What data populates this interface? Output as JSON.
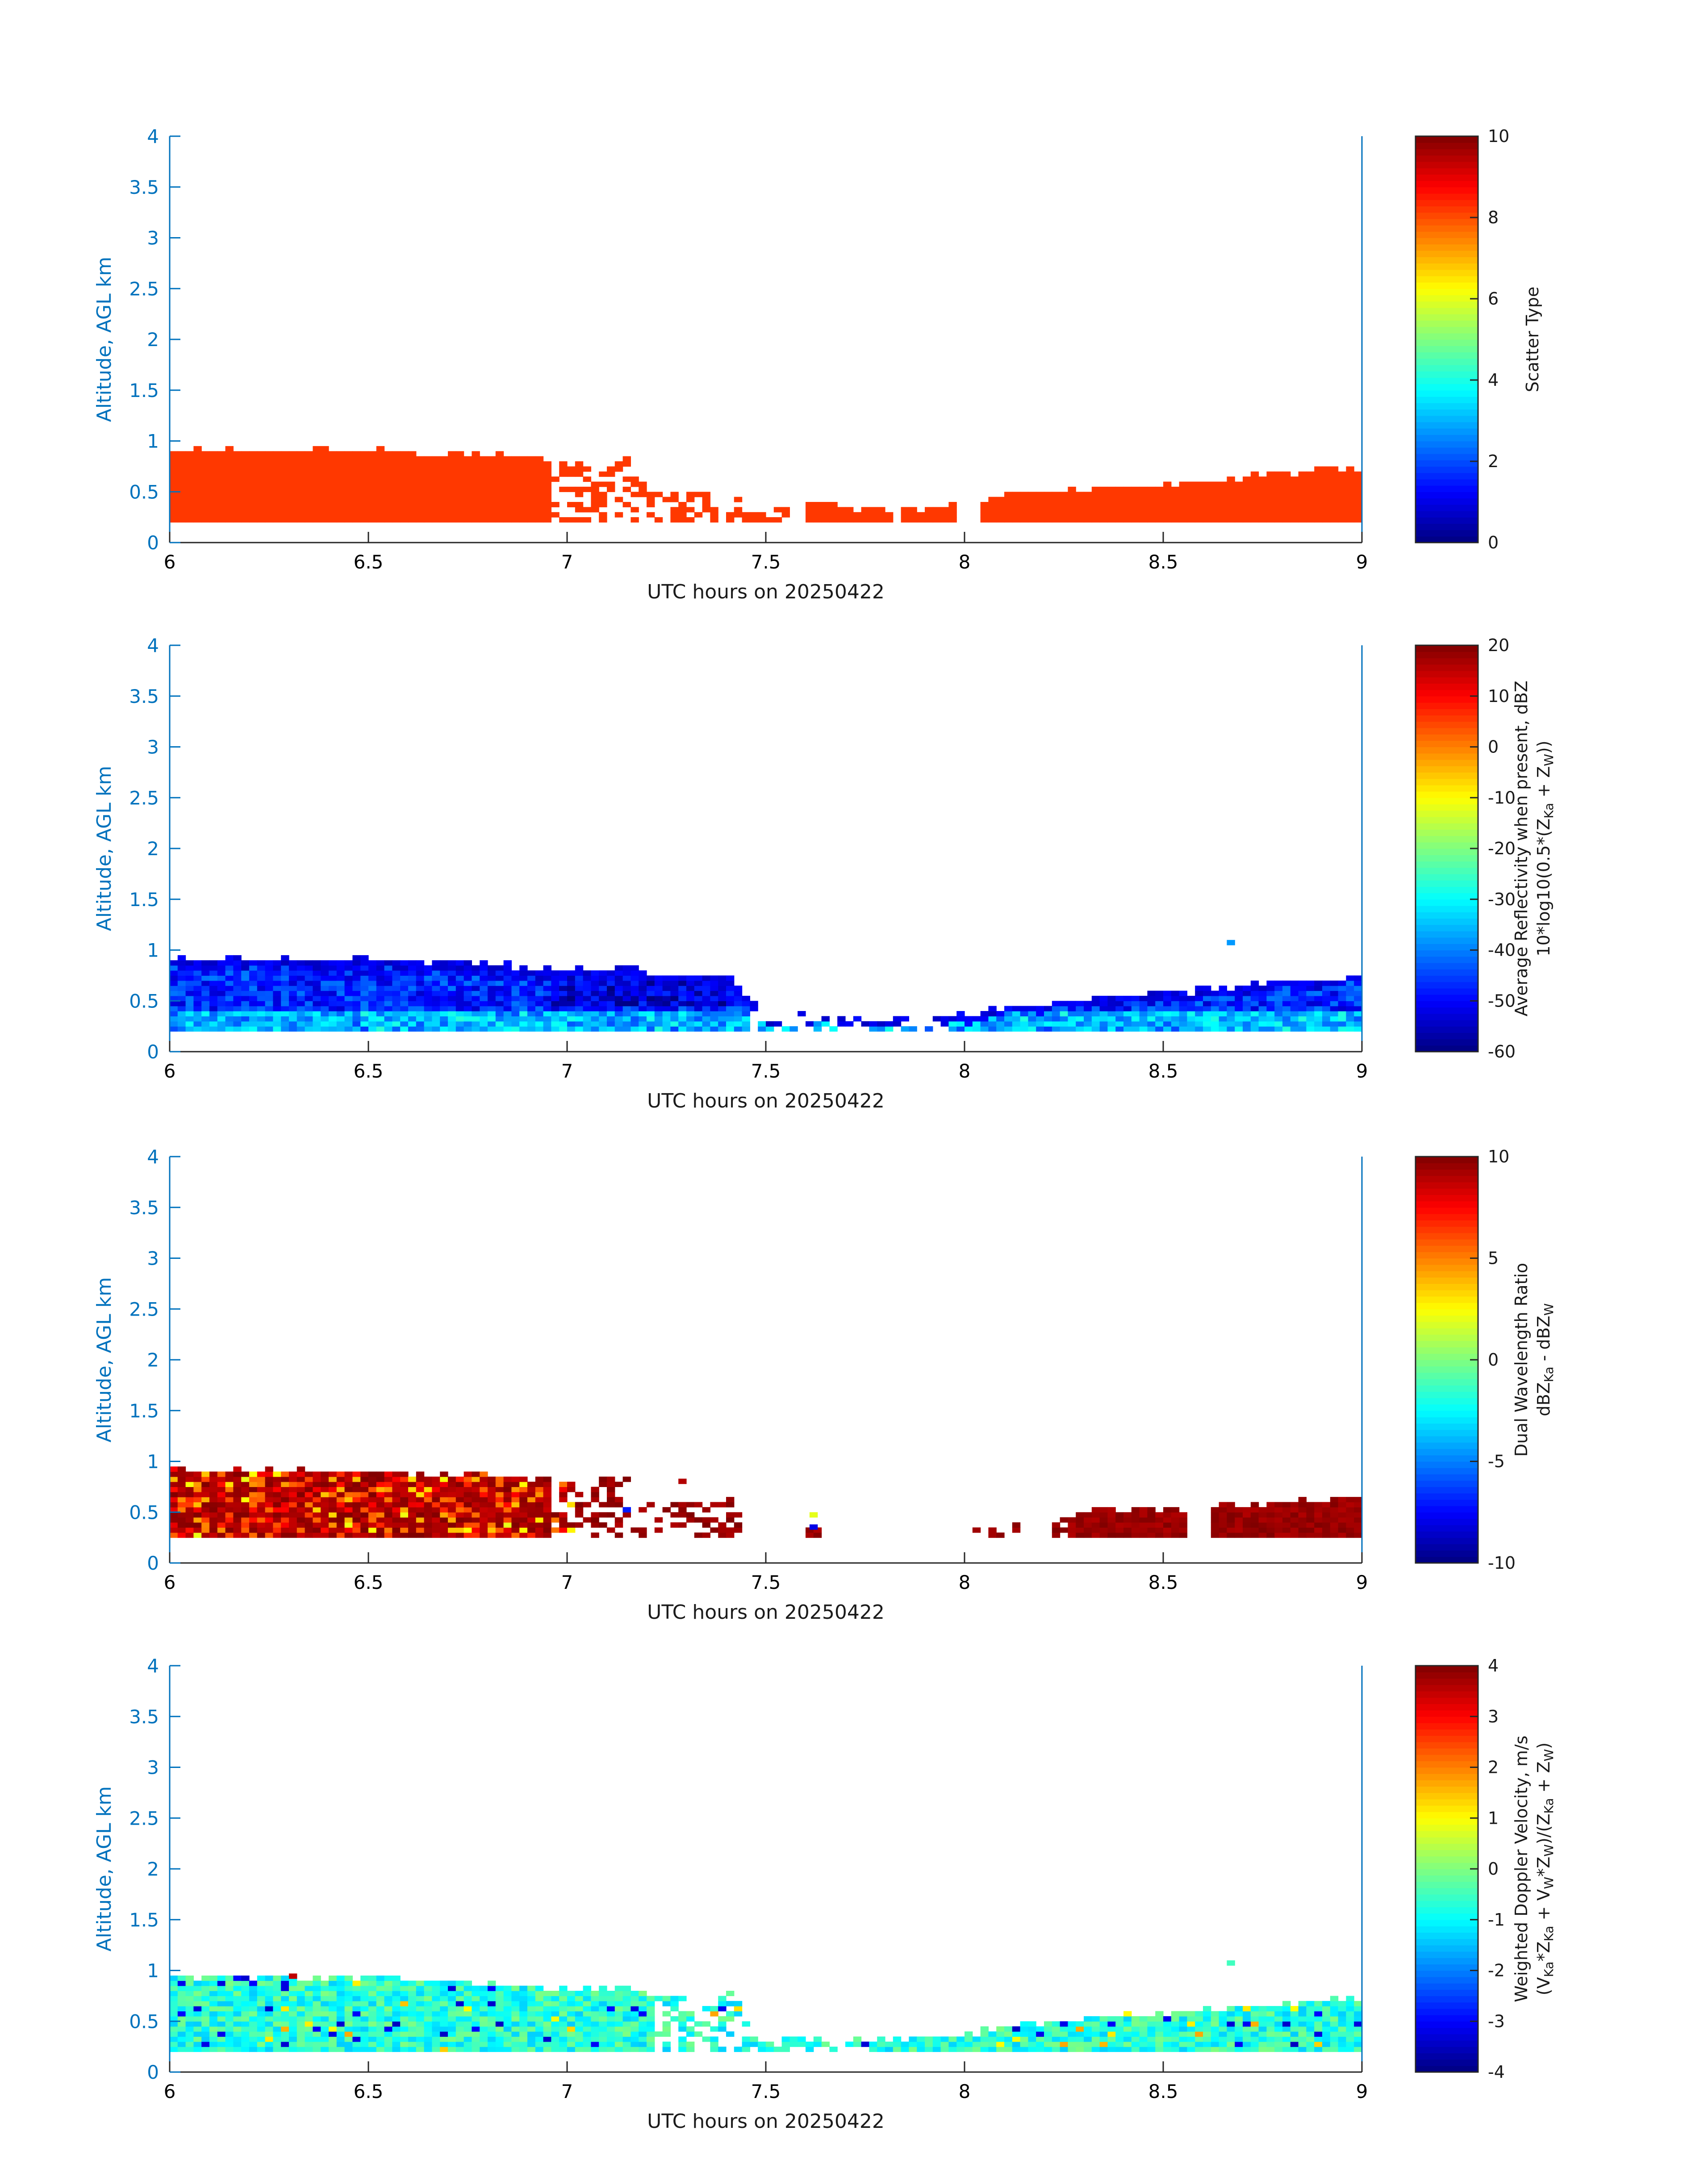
{
  "figure": {
    "background": "#ffffff"
  },
  "chart_data": [
    {
      "type": "heatmap",
      "panel": "scatter-type",
      "xlabel": "UTC hours on 20250422",
      "ylabel": "Altitude, AGL km",
      "xlim": [
        6,
        9
      ],
      "ylim": [
        0,
        4
      ],
      "xticks": [
        "6",
        "6.5",
        "7",
        "7.5",
        "8",
        "8.5",
        "9"
      ],
      "yticks": [
        "0",
        "0.5",
        "1",
        "1.5",
        "2",
        "2.5",
        "3",
        "3.5",
        "4"
      ],
      "colorbar": {
        "label_lines": [
          "Scatter Type"
        ],
        "ticks": [
          "0",
          "2",
          "4",
          "6",
          "8",
          "10"
        ],
        "range": [
          0,
          10
        ],
        "colormap": "jet"
      },
      "field": "constant",
      "constant_value": 8.2,
      "cloud_base_km": 0.2,
      "cloud_top_profile": {
        "x": [
          6.0,
          6.5,
          6.8,
          6.9,
          7.0,
          7.15,
          7.2,
          7.3,
          7.4,
          7.5,
          7.6,
          7.8,
          8.0,
          8.1,
          8.3,
          8.5,
          8.7,
          8.9,
          9.0
        ],
        "top_km": [
          0.88,
          0.88,
          0.84,
          0.8,
          0.78,
          0.8,
          0.48,
          0.45,
          0.42,
          0.3,
          0.35,
          0.3,
          0.35,
          0.45,
          0.5,
          0.55,
          0.62,
          0.7,
          0.72
        ]
      },
      "gaps_x": [
        [
          7.8,
          7.83
        ],
        [
          7.97,
          8.02
        ]
      ],
      "x_clear": [],
      "x_sparse": [
        [
          6.95,
          7.6
        ]
      ],
      "isolated": []
    },
    {
      "type": "heatmap",
      "panel": "reflectivity",
      "xlabel": "UTC hours on 20250422",
      "ylabel": "Altitude, AGL km",
      "xlim": [
        6,
        9
      ],
      "ylim": [
        0,
        4
      ],
      "xticks": [
        "6",
        "6.5",
        "7",
        "7.5",
        "8",
        "8.5",
        "9"
      ],
      "yticks": [
        "0",
        "0.5",
        "1",
        "1.5",
        "2",
        "2.5",
        "3",
        "3.5",
        "4"
      ],
      "colorbar": {
        "label_lines": [
          "Average Reflectivity when present, dBZ",
          "10*log10(0.5*(Z",
          "Ka",
          " + Z",
          "W",
          "))"
        ],
        "ticks": [
          "-60",
          "-50",
          "-40",
          "-30",
          "-20",
          "-10",
          "0",
          "10",
          "20"
        ],
        "range": [
          -60,
          20
        ],
        "colormap": "jet"
      },
      "field": "reflectivity",
      "cloud_base_km": 0.2,
      "cloud_top_profile": {
        "x": [
          6.0,
          6.5,
          6.8,
          6.9,
          7.0,
          7.15,
          7.2,
          7.3,
          7.4,
          7.5,
          7.6,
          7.8,
          8.0,
          8.1,
          8.3,
          8.5,
          8.7,
          8.9,
          9.0
        ],
        "top_km": [
          0.88,
          0.88,
          0.84,
          0.8,
          0.78,
          0.8,
          0.72,
          0.72,
          0.72,
          0.3,
          0.35,
          0.3,
          0.35,
          0.42,
          0.5,
          0.55,
          0.62,
          0.7,
          0.72
        ]
      },
      "gaps_x": [],
      "x_clear": [],
      "x_sparse": [
        [
          7.45,
          7.95
        ]
      ],
      "isolated": [
        {
          "x": 8.66,
          "y": 1.05,
          "v": -38
        }
      ]
    },
    {
      "type": "heatmap",
      "panel": "dwr",
      "xlabel": "UTC hours on 20250422",
      "ylabel": "Altitude, AGL km",
      "xlim": [
        6,
        9
      ],
      "ylim": [
        0,
        4
      ],
      "xticks": [
        "6",
        "6.5",
        "7",
        "7.5",
        "8",
        "8.5",
        "9"
      ],
      "yticks": [
        "0",
        "0.5",
        "1",
        "1.5",
        "2",
        "2.5",
        "3",
        "3.5",
        "4"
      ],
      "colorbar": {
        "label_lines": [
          "Dual Wavelength Ratio",
          "dBZ",
          "Ka",
          " - dBZ",
          "W"
        ],
        "ticks": [
          "-10",
          "-5",
          "0",
          "5",
          "10"
        ],
        "range": [
          -10,
          10
        ],
        "colormap": "jet"
      },
      "field": "dwr",
      "cloud_base_km": 0.25,
      "cloud_top_profile": {
        "x": [
          6.0,
          6.5,
          6.8,
          6.9,
          7.0,
          7.15,
          7.2,
          7.3,
          7.4,
          7.5,
          7.6,
          7.8,
          8.0,
          8.25,
          8.3,
          8.5,
          8.7,
          8.9,
          9.0
        ],
        "top_km": [
          0.88,
          0.88,
          0.84,
          0.8,
          0.78,
          0.8,
          0.6,
          0.6,
          0.6,
          0.3,
          0.35,
          0.3,
          0.35,
          0.4,
          0.5,
          0.5,
          0.55,
          0.6,
          0.6
        ]
      },
      "gaps_x": [],
      "x_clear": [
        [
          7.42,
          7.58
        ],
        [
          7.63,
          8.0
        ],
        [
          8.12,
          8.2
        ],
        [
          8.55,
          8.6
        ]
      ],
      "x_sparse": [
        [
          6.95,
          7.45
        ],
        [
          8.0,
          8.25
        ]
      ],
      "isolated": [
        {
          "x": 7.61,
          "y": 0.33,
          "v": -8
        },
        {
          "x": 7.61,
          "y": 0.45,
          "v": 2
        },
        {
          "x": 7.14,
          "y": 0.5,
          "v": -7
        },
        {
          "x": 7.28,
          "y": 0.78,
          "v": 9
        }
      ]
    },
    {
      "type": "heatmap",
      "panel": "doppler",
      "xlabel": "UTC hours on 20250422",
      "ylabel": "Altitude, AGL km",
      "xlim": [
        6,
        9
      ],
      "ylim": [
        0,
        4
      ],
      "xticks": [
        "6",
        "6.5",
        "7",
        "7.5",
        "8",
        "8.5",
        "9"
      ],
      "yticks": [
        "0",
        "0.5",
        "1",
        "1.5",
        "2",
        "2.5",
        "3",
        "3.5",
        "4"
      ],
      "colorbar": {
        "label_lines": [
          "Weighted Doppler Velocity, m/s",
          "(V",
          "Ka",
          "*Z",
          "Ka",
          " + V",
          "W",
          "*Z",
          "W",
          ")/(Z",
          "Ka",
          " + Z",
          "W",
          ")"
        ],
        "ticks": [
          "-4",
          "-3",
          "-2",
          "-1",
          "0",
          "1",
          "2",
          "3",
          "4"
        ],
        "range": [
          -4,
          4
        ],
        "colormap": "jet"
      },
      "field": "doppler",
      "cloud_base_km": 0.2,
      "cloud_top_profile": {
        "x": [
          6.0,
          6.5,
          6.8,
          6.9,
          7.0,
          7.15,
          7.2,
          7.3,
          7.4,
          7.5,
          7.6,
          7.8,
          8.0,
          8.1,
          8.3,
          8.5,
          8.7,
          8.9,
          9.0
        ],
        "top_km": [
          0.92,
          0.9,
          0.86,
          0.82,
          0.8,
          0.8,
          0.72,
          0.72,
          0.75,
          0.3,
          0.35,
          0.3,
          0.35,
          0.42,
          0.5,
          0.55,
          0.62,
          0.7,
          0.72
        ]
      },
      "gaps_x": [],
      "x_clear": [],
      "x_sparse": [
        [
          7.2,
          7.75
        ]
      ],
      "isolated": [
        {
          "x": 8.66,
          "y": 1.05,
          "v": -0.5
        },
        {
          "x": 6.3,
          "y": 0.92,
          "v": 3.5
        }
      ]
    }
  ]
}
